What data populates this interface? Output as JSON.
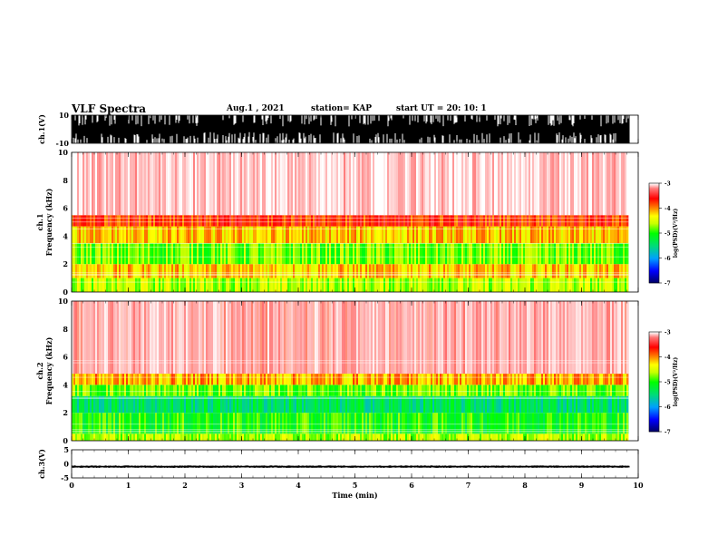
{
  "header": {
    "title": "VLF Spectra",
    "date": "Aug.1 , 2021",
    "station": "station= KAP",
    "start": "start UT =  20: 10: 1"
  },
  "chart_data": [
    {
      "type": "line",
      "panel": "ch1-waveform",
      "ylabel": "ch.1(V)",
      "ylim": [
        -10,
        10
      ],
      "yticks": [
        -10,
        10
      ],
      "xlim": [
        0,
        10
      ],
      "description_values": {
        "min": -10,
        "max": 10,
        "saturated": true
      }
    },
    {
      "type": "heatmap",
      "panel": "ch1-spectrogram",
      "ylabel": "ch.1 Frequency (kHz)",
      "ylim": [
        0,
        10
      ],
      "yticks": [
        0,
        2,
        4,
        6,
        8,
        10
      ],
      "xlim": [
        0,
        9.83
      ],
      "colorbar": {
        "label": "log(PSD)(V²/Hz)",
        "ticks": [
          -3,
          -4,
          -5,
          -6,
          -7
        ],
        "range": [
          -7,
          -3
        ]
      },
      "bands": [
        {
          "f_low": 0.0,
          "f_high": 1.0,
          "level": -4.6
        },
        {
          "f_low": 1.0,
          "f_high": 2.0,
          "level": -4.2
        },
        {
          "f_low": 2.0,
          "f_high": 3.5,
          "level": -4.8
        },
        {
          "f_low": 3.5,
          "f_high": 4.7,
          "level": -4.2
        },
        {
          "f_low": 4.7,
          "f_high": 5.5,
          "level": -3.7
        },
        {
          "f_low": 5.5,
          "f_high": 10.0,
          "level": -3.2
        }
      ]
    },
    {
      "type": "heatmap",
      "panel": "ch2-spectrogram",
      "ylabel": "ch.2 Frequency (kHz)",
      "ylim": [
        0,
        10
      ],
      "yticks": [
        0,
        2,
        4,
        6,
        8,
        10
      ],
      "xlim": [
        0,
        9.83
      ],
      "colorbar": {
        "label": "log(PSD)(V²/Hz)",
        "ticks": [
          -3,
          -4,
          -5,
          -6,
          -7
        ],
        "range": [
          -7,
          -3
        ]
      },
      "bands": [
        {
          "f_low": 0.0,
          "f_high": 0.5,
          "level": -4.6
        },
        {
          "f_low": 0.5,
          "f_high": 2.0,
          "level": -5.0
        },
        {
          "f_low": 2.0,
          "f_high": 3.2,
          "level": -5.4
        },
        {
          "f_low": 3.2,
          "f_high": 4.0,
          "level": -4.8
        },
        {
          "f_low": 4.0,
          "f_high": 4.8,
          "level": -4.1
        },
        {
          "f_low": 4.8,
          "f_high": 10.0,
          "level": -3.4
        }
      ]
    },
    {
      "type": "line",
      "panel": "ch3-waveform",
      "ylabel": "ch.3(V)",
      "ylim": [
        -5,
        5
      ],
      "yticks": [
        -5,
        0,
        5
      ],
      "xlim": [
        0,
        10
      ],
      "description_values": {
        "center": -1,
        "amplitude": 0.4
      }
    }
  ],
  "xaxis": {
    "label": "Time  (min)",
    "ticks": [
      0,
      1,
      2,
      3,
      4,
      5,
      6,
      7,
      8,
      9,
      10
    ],
    "range": [
      0,
      10
    ]
  },
  "colors": {
    "red": "#ff0000",
    "yellow": "#ffff00",
    "green": "#00ff00",
    "blue": "#0000ff",
    "navy": "#000080"
  }
}
